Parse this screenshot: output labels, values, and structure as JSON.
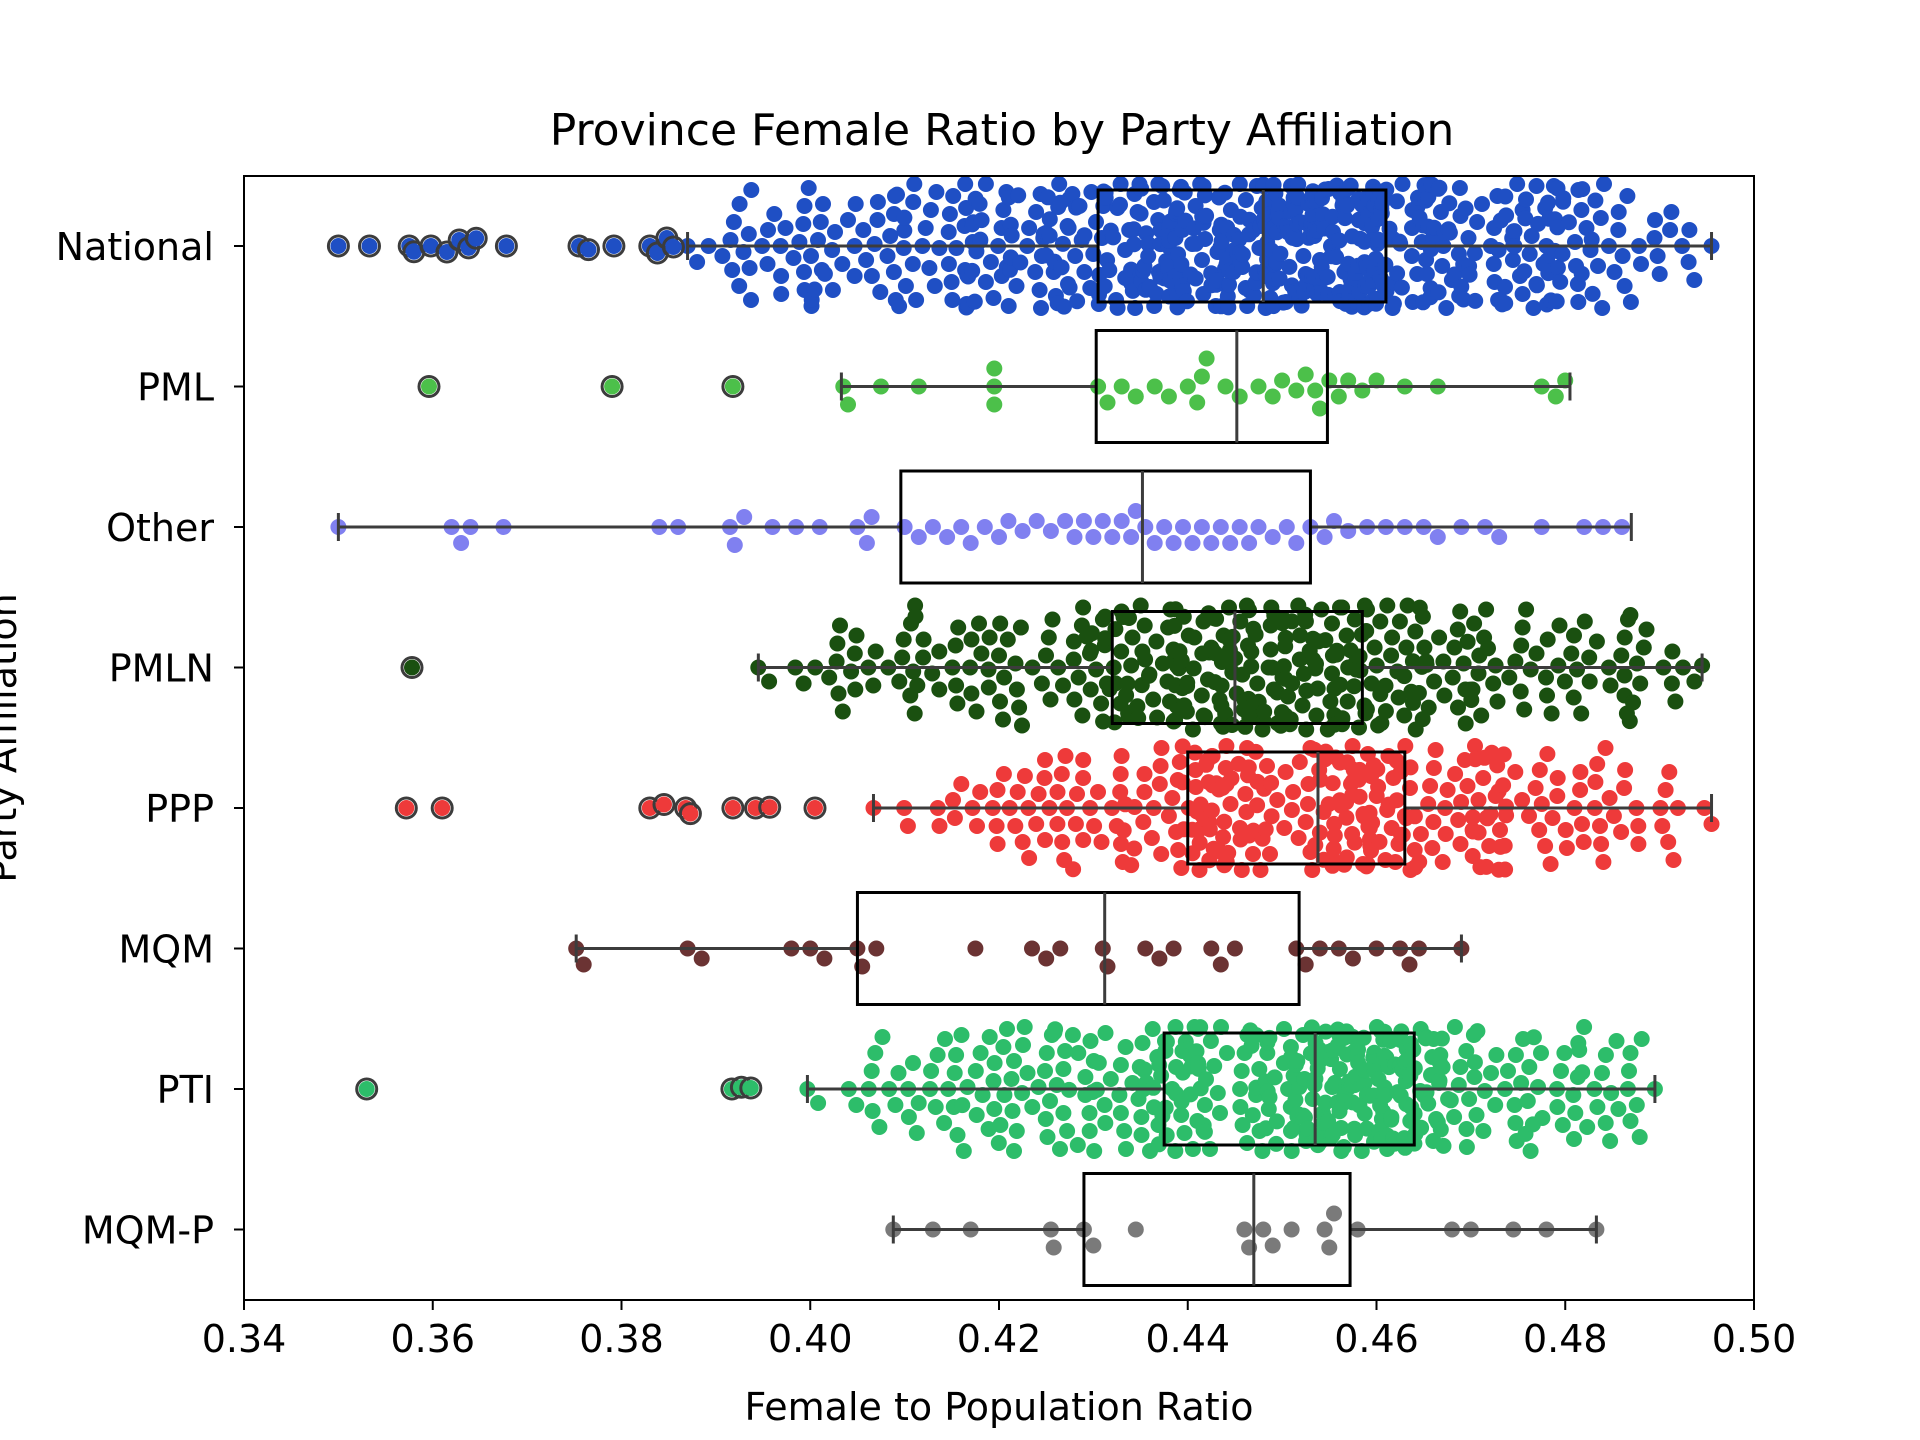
{
  "chart_data": {
    "type": "box+swarm",
    "title": "Province Female Ratio by Party Affiliation",
    "xlabel": "Female to Population Ratio",
    "ylabel": "Party Affiliation",
    "xlim": [
      0.34,
      0.5
    ],
    "xticks": [
      "0.34",
      "0.36",
      "0.38",
      "0.40",
      "0.42",
      "0.44",
      "0.46",
      "0.48",
      "0.50"
    ],
    "grid": false,
    "categories": [
      "National",
      "PML",
      "Other",
      "PMLN",
      "PPP",
      "MQM",
      "PTI",
      "MQM-P"
    ],
    "series": [
      {
        "name": "National",
        "color": "#1f4fc4",
        "approx_points": 650,
        "box": {
          "min": 0.387,
          "q1": 0.4305,
          "median": 0.448,
          "q3": 0.461,
          "max": 0.4955
        },
        "outliers": [
          0.35,
          0.3533,
          0.3575,
          0.358,
          0.3598,
          0.3615,
          0.3628,
          0.3638,
          0.3646,
          0.3678,
          0.3755,
          0.3765,
          0.3792,
          0.383,
          0.3838,
          0.3848,
          0.3855
        ]
      },
      {
        "name": "PML",
        "color": "#4cc04a",
        "box": {
          "min": 0.4033,
          "q1": 0.4303,
          "median": 0.4452,
          "q3": 0.4548,
          "max": 0.4805
        },
        "outliers": [
          0.3596,
          0.379,
          0.3918
        ],
        "points": [
          0.4035,
          0.404,
          0.4075,
          0.4115,
          0.4195,
          0.4195,
          0.4195,
          0.4305,
          0.4315,
          0.433,
          0.4345,
          0.4365,
          0.438,
          0.44,
          0.441,
          0.4415,
          0.442,
          0.444,
          0.4455,
          0.4475,
          0.449,
          0.45,
          0.4515,
          0.4525,
          0.4535,
          0.454,
          0.455,
          0.456,
          0.457,
          0.4585,
          0.46,
          0.463,
          0.4665,
          0.4775,
          0.479,
          0.48
        ]
      },
      {
        "name": "Other",
        "color": "#8080f0",
        "box": {
          "min": 0.35,
          "q1": 0.4096,
          "median": 0.4352,
          "q3": 0.453,
          "max": 0.487
        },
        "outliers": [],
        "points": [
          0.35,
          0.362,
          0.363,
          0.364,
          0.3675,
          0.384,
          0.386,
          0.3915,
          0.392,
          0.393,
          0.396,
          0.3985,
          0.401,
          0.405,
          0.406,
          0.4065,
          0.41,
          0.4115,
          0.413,
          0.4145,
          0.416,
          0.417,
          0.4185,
          0.42,
          0.421,
          0.4225,
          0.424,
          0.4255,
          0.427,
          0.428,
          0.429,
          0.43,
          0.431,
          0.432,
          0.433,
          0.434,
          0.4345,
          0.4355,
          0.4365,
          0.4375,
          0.4385,
          0.4395,
          0.4405,
          0.4415,
          0.4425,
          0.4435,
          0.4445,
          0.4455,
          0.4465,
          0.4475,
          0.449,
          0.4505,
          0.4515,
          0.453,
          0.4545,
          0.4555,
          0.457,
          0.459,
          0.461,
          0.463,
          0.465,
          0.4665,
          0.469,
          0.4715,
          0.473,
          0.4775,
          0.482,
          0.484,
          0.486
        ]
      },
      {
        "name": "PMLN",
        "color": "#1a5010",
        "approx_points": 380,
        "box": {
          "min": 0.3945,
          "q1": 0.432,
          "median": 0.445,
          "q3": 0.4585,
          "max": 0.4945
        },
        "outliers": [
          0.3578
        ]
      },
      {
        "name": "PPP",
        "color": "#ee3a3a",
        "approx_points": 320,
        "box": {
          "min": 0.4067,
          "q1": 0.44,
          "median": 0.4538,
          "q3": 0.463,
          "max": 0.4955
        },
        "outliers": [
          0.3572,
          0.361,
          0.383,
          0.3845,
          0.3868,
          0.3873,
          0.3918,
          0.3942,
          0.3957,
          0.4005
        ]
      },
      {
        "name": "MQM",
        "color": "#6b3333",
        "box": {
          "min": 0.3752,
          "q1": 0.405,
          "median": 0.4312,
          "q3": 0.4518,
          "max": 0.469
        },
        "outliers": [],
        "points": [
          0.3752,
          0.376,
          0.387,
          0.3885,
          0.398,
          0.4,
          0.4015,
          0.405,
          0.4055,
          0.407,
          0.4175,
          0.4235,
          0.425,
          0.4265,
          0.431,
          0.4315,
          0.4355,
          0.437,
          0.4385,
          0.4425,
          0.4435,
          0.445,
          0.4515,
          0.4525,
          0.454,
          0.456,
          0.4575,
          0.46,
          0.4625,
          0.4635,
          0.4645,
          0.469
        ]
      },
      {
        "name": "PTI",
        "color": "#2dbd6a",
        "approx_points": 420,
        "box": {
          "min": 0.3997,
          "q1": 0.4375,
          "median": 0.4535,
          "q3": 0.464,
          "max": 0.4895
        },
        "outliers": [
          0.353,
          0.3917,
          0.3927,
          0.3937
        ]
      },
      {
        "name": "MQM-P",
        "color": "#7a7a7a",
        "box": {
          "min": 0.4088,
          "q1": 0.429,
          "median": 0.447,
          "q3": 0.4572,
          "max": 0.4833
        },
        "outliers": [],
        "points": [
          0.4088,
          0.413,
          0.417,
          0.4255,
          0.4258,
          0.429,
          0.43,
          0.4345,
          0.446,
          0.4465,
          0.448,
          0.449,
          0.451,
          0.4545,
          0.455,
          0.4555,
          0.458,
          0.468,
          0.47,
          0.4745,
          0.478,
          0.4833
        ]
      }
    ]
  }
}
